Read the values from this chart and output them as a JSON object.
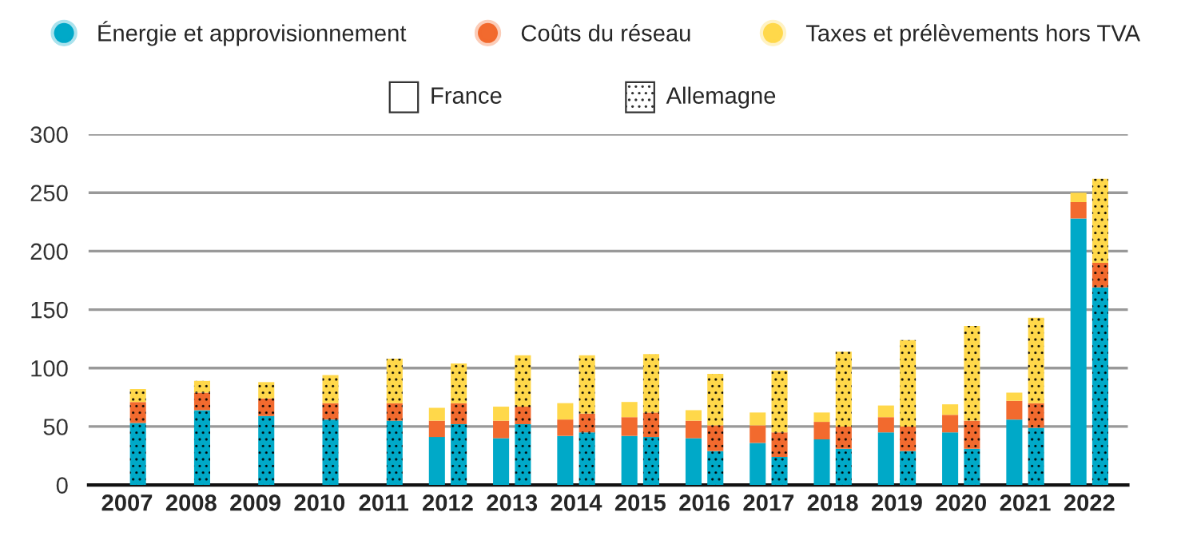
{
  "chart_data": [
    {
      "type": "bar",
      "stacked": true,
      "annotations": [
        "France"
      ],
      "categories": [
        "2007",
        "2008",
        "2009",
        "2010",
        "2011",
        "2012",
        "2013",
        "2014",
        "2015",
        "2016",
        "2017",
        "2018",
        "2019",
        "2020",
        "2021",
        "2022"
      ],
      "series": [
        {
          "name": "Énergie et approvisionnement",
          "color": "#00a9c8",
          "values": [
            null,
            null,
            null,
            null,
            null,
            41,
            40,
            42,
            42,
            40,
            36,
            39,
            45,
            45,
            56,
            228
          ]
        },
        {
          "name": "Coûts du réseau",
          "color": "#f26a2e",
          "values": [
            null,
            null,
            null,
            null,
            null,
            14,
            15,
            14,
            16,
            15,
            15,
            15,
            13,
            15,
            16,
            14
          ]
        },
        {
          "name": "Taxes et prélèvements hors TVA",
          "color": "#ffd84a",
          "values": [
            null,
            null,
            null,
            null,
            null,
            11,
            12,
            14,
            13,
            9,
            11,
            8,
            10,
            9,
            7,
            8
          ]
        }
      ],
      "ylim": [
        0,
        300
      ],
      "yticks": [
        0,
        50,
        100,
        150,
        200,
        250,
        300
      ],
      "grid": "y",
      "legend": "top"
    },
    {
      "type": "bar",
      "stacked": true,
      "annotations": [
        "Allemagne"
      ],
      "categories": [
        "2007",
        "2008",
        "2009",
        "2010",
        "2011",
        "2012",
        "2013",
        "2014",
        "2015",
        "2016",
        "2017",
        "2018",
        "2019",
        "2020",
        "2021",
        "2022"
      ],
      "series": [
        {
          "color": "#00a9c8",
          "values": [
            53,
            64,
            59,
            56,
            55,
            52,
            52,
            45,
            41,
            29,
            24,
            31,
            29,
            31,
            49,
            169
          ]
        },
        {
          "color": "#f26a2e",
          "values": [
            18,
            15,
            15,
            14,
            15,
            18,
            15,
            16,
            21,
            22,
            21,
            19,
            21,
            24,
            21,
            21
          ]
        },
        {
          "color": "#ffd84a",
          "values": [
            11,
            10,
            14,
            24,
            38,
            34,
            44,
            50,
            50,
            44,
            53,
            64,
            74,
            81,
            73,
            72
          ]
        }
      ],
      "ylim": [
        0,
        300
      ],
      "tick_labels": false
    }
  ]
}
